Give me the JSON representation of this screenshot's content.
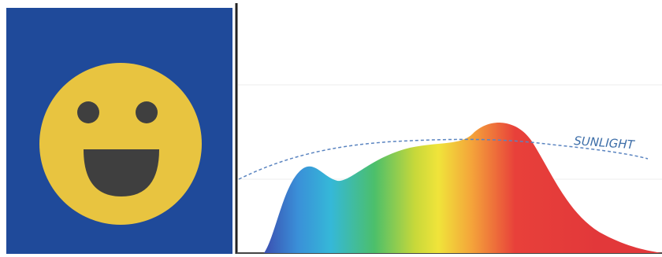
{
  "spectrum": {
    "label": "SUNLIGHT"
  }
}
